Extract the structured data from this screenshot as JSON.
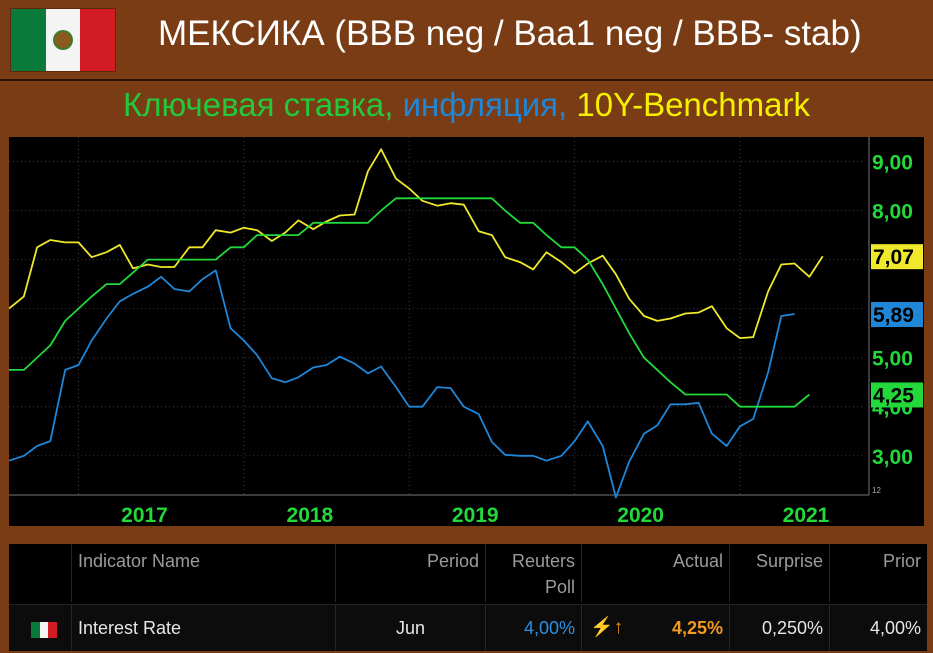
{
  "header": {
    "title": "МЕКСИКА (BBB neg / Baa1 neg / BBB- stab)",
    "flag_icon": "mexico-flag-icon"
  },
  "subtitle": {
    "part1": "Ключевая ставка,",
    "part2": "инфляция,",
    "part3": "10Y-Benchmark",
    "colors": {
      "part1": "#22c93a",
      "part2": "#1f86d8",
      "part3": "#f4f000"
    }
  },
  "chart_data": {
    "type": "line",
    "x_ticks": [
      "2017",
      "2018",
      "2019",
      "2020",
      "2021"
    ],
    "y_ticks": [
      "3,00",
      "4,00",
      "5,00",
      "8,00",
      "9,00"
    ],
    "ylim": [
      2.2,
      9.5
    ],
    "axis_corner_label": "12",
    "grid": true,
    "series": [
      {
        "color": "#f0e82a",
        "last_label": "7,07",
        "points": [
          [
            2016.58,
            6.0
          ],
          [
            2016.67,
            6.25
          ],
          [
            2016.75,
            7.25
          ],
          [
            2016.83,
            7.4
          ],
          [
            2016.92,
            7.35
          ],
          [
            2017.0,
            7.35
          ],
          [
            2017.08,
            7.05
          ],
          [
            2017.17,
            7.15
          ],
          [
            2017.25,
            7.3
          ],
          [
            2017.33,
            6.82
          ],
          [
            2017.42,
            6.9
          ],
          [
            2017.5,
            6.85
          ],
          [
            2017.58,
            6.85
          ],
          [
            2017.67,
            7.25
          ],
          [
            2017.75,
            7.25
          ],
          [
            2017.83,
            7.6
          ],
          [
            2017.92,
            7.55
          ],
          [
            2018.0,
            7.65
          ],
          [
            2018.08,
            7.6
          ],
          [
            2018.17,
            7.38
          ],
          [
            2018.25,
            7.55
          ],
          [
            2018.33,
            7.8
          ],
          [
            2018.42,
            7.62
          ],
          [
            2018.5,
            7.78
          ],
          [
            2018.58,
            7.9
          ],
          [
            2018.67,
            7.92
          ],
          [
            2018.75,
            8.8
          ],
          [
            2018.83,
            9.25
          ],
          [
            2018.92,
            8.65
          ],
          [
            2019.0,
            8.45
          ],
          [
            2019.08,
            8.2
          ],
          [
            2019.17,
            8.1
          ],
          [
            2019.25,
            8.15
          ],
          [
            2019.33,
            8.12
          ],
          [
            2019.42,
            7.58
          ],
          [
            2019.5,
            7.5
          ],
          [
            2019.58,
            7.05
          ],
          [
            2019.67,
            6.95
          ],
          [
            2019.75,
            6.8
          ],
          [
            2019.83,
            7.15
          ],
          [
            2019.92,
            6.95
          ],
          [
            2020.0,
            6.72
          ],
          [
            2020.08,
            6.92
          ],
          [
            2020.17,
            7.08
          ],
          [
            2020.25,
            6.7
          ],
          [
            2020.33,
            6.2
          ],
          [
            2020.42,
            5.85
          ],
          [
            2020.5,
            5.75
          ],
          [
            2020.58,
            5.8
          ],
          [
            2020.67,
            5.9
          ],
          [
            2020.75,
            5.92
          ],
          [
            2020.83,
            6.05
          ],
          [
            2020.92,
            5.6
          ],
          [
            2021.0,
            5.4
          ],
          [
            2021.08,
            5.42
          ],
          [
            2021.17,
            6.35
          ],
          [
            2021.25,
            6.9
          ],
          [
            2021.33,
            6.92
          ],
          [
            2021.42,
            6.65
          ],
          [
            2021.5,
            7.07
          ]
        ]
      },
      {
        "color": "#1f86d8",
        "last_label": "5,89",
        "points": [
          [
            2016.58,
            2.9
          ],
          [
            2016.67,
            3.0
          ],
          [
            2016.75,
            3.2
          ],
          [
            2016.83,
            3.3
          ],
          [
            2016.92,
            4.75
          ],
          [
            2017.0,
            4.85
          ],
          [
            2017.08,
            5.35
          ],
          [
            2017.17,
            5.8
          ],
          [
            2017.25,
            6.15
          ],
          [
            2017.33,
            6.3
          ],
          [
            2017.42,
            6.45
          ],
          [
            2017.5,
            6.65
          ],
          [
            2017.58,
            6.4
          ],
          [
            2017.67,
            6.35
          ],
          [
            2017.75,
            6.6
          ],
          [
            2017.83,
            6.78
          ],
          [
            2017.92,
            5.6
          ],
          [
            2018.0,
            5.35
          ],
          [
            2018.08,
            5.05
          ],
          [
            2018.17,
            4.58
          ],
          [
            2018.25,
            4.5
          ],
          [
            2018.33,
            4.6
          ],
          [
            2018.42,
            4.8
          ],
          [
            2018.5,
            4.85
          ],
          [
            2018.58,
            5.02
          ],
          [
            2018.67,
            4.88
          ],
          [
            2018.75,
            4.68
          ],
          [
            2018.83,
            4.82
          ],
          [
            2018.92,
            4.4
          ],
          [
            2019.0,
            4.0
          ],
          [
            2019.08,
            4.0
          ],
          [
            2019.17,
            4.4
          ],
          [
            2019.25,
            4.38
          ],
          [
            2019.33,
            4.0
          ],
          [
            2019.42,
            3.85
          ],
          [
            2019.5,
            3.28
          ],
          [
            2019.58,
            3.02
          ],
          [
            2019.67,
            3.0
          ],
          [
            2019.75,
            3.0
          ],
          [
            2019.83,
            2.9
          ],
          [
            2019.92,
            3.0
          ],
          [
            2020.0,
            3.3
          ],
          [
            2020.08,
            3.7
          ],
          [
            2020.17,
            3.2
          ],
          [
            2020.25,
            2.15
          ],
          [
            2020.33,
            2.88
          ],
          [
            2020.42,
            3.45
          ],
          [
            2020.5,
            3.62
          ],
          [
            2020.58,
            4.05
          ],
          [
            2020.67,
            4.05
          ],
          [
            2020.75,
            4.08
          ],
          [
            2020.83,
            3.45
          ],
          [
            2020.92,
            3.2
          ],
          [
            2021.0,
            3.6
          ],
          [
            2021.08,
            3.75
          ],
          [
            2021.17,
            4.7
          ],
          [
            2021.25,
            5.85
          ],
          [
            2021.33,
            5.89
          ]
        ]
      },
      {
        "color": "#22d83a",
        "last_label": "4,25",
        "points": [
          [
            2016.58,
            4.75
          ],
          [
            2016.67,
            4.75
          ],
          [
            2016.83,
            5.25
          ],
          [
            2016.92,
            5.75
          ],
          [
            2017.0,
            6.0
          ],
          [
            2017.08,
            6.25
          ],
          [
            2017.17,
            6.5
          ],
          [
            2017.25,
            6.5
          ],
          [
            2017.42,
            7.0
          ],
          [
            2017.83,
            7.0
          ],
          [
            2017.92,
            7.25
          ],
          [
            2018.0,
            7.25
          ],
          [
            2018.08,
            7.5
          ],
          [
            2018.33,
            7.5
          ],
          [
            2018.42,
            7.75
          ],
          [
            2018.75,
            7.75
          ],
          [
            2018.83,
            8.0
          ],
          [
            2018.92,
            8.25
          ],
          [
            2019.5,
            8.25
          ],
          [
            2019.58,
            8.0
          ],
          [
            2019.67,
            7.75
          ],
          [
            2019.75,
            7.75
          ],
          [
            2019.83,
            7.5
          ],
          [
            2019.92,
            7.25
          ],
          [
            2020.0,
            7.25
          ],
          [
            2020.08,
            7.0
          ],
          [
            2020.17,
            6.5
          ],
          [
            2020.25,
            6.0
          ],
          [
            2020.33,
            5.5
          ],
          [
            2020.42,
            5.0
          ],
          [
            2020.5,
            4.75
          ],
          [
            2020.58,
            4.5
          ],
          [
            2020.67,
            4.25
          ],
          [
            2020.92,
            4.25
          ],
          [
            2021.0,
            4.0
          ],
          [
            2021.33,
            4.0
          ],
          [
            2021.42,
            4.25
          ]
        ]
      }
    ]
  },
  "table": {
    "headers": {
      "name": "Indicator Name",
      "period": "Period",
      "poll_line1": "Reuters",
      "poll_line2": "Poll",
      "actual": "Actual",
      "surprise": "Surprise",
      "prior": "Prior"
    },
    "row": {
      "name": "Interest Rate",
      "period": "Jun",
      "poll": "4,00%",
      "actual": "4,25%",
      "surprise": "0,250%",
      "prior": "4,00%",
      "surprise_icon": "lightning-up-arrow-icon",
      "flag_icon": "mexico-flag-icon",
      "poll_color": "#2f8fe0",
      "actual_color": "#f29a1e"
    }
  }
}
